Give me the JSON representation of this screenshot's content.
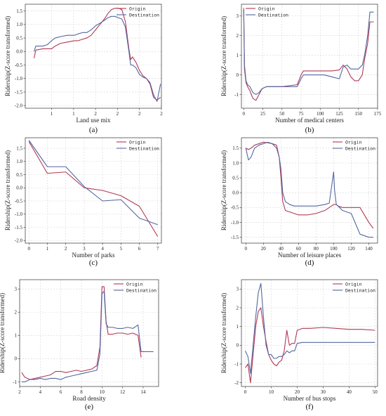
{
  "colors": {
    "origin": "#b03a55",
    "destination": "#5468a0"
  },
  "legend_labels": [
    "Origin",
    "Destination"
  ],
  "chart_data": [
    {
      "id": "a",
      "type": "line",
      "panel_label": "(a)",
      "xlabel": "Land use mix",
      "ylabel": "Ridership(Z-score transformed)",
      "xlim": [
        0.7,
        2.25
      ],
      "ylim": [
        -2.1,
        1.75
      ],
      "xticks": [
        1,
        1.25,
        1.5,
        1.75,
        2,
        2.25
      ],
      "xticklabels": [
        "1",
        "1",
        "2",
        "2",
        "2",
        "2"
      ],
      "yticks": [
        -2.0,
        -1.5,
        -1.0,
        -0.5,
        0.0,
        0.5,
        1.0,
        1.5
      ],
      "yticklabels": [
        "-2.0",
        "-1.5",
        "-1.0",
        "-0.5",
        "0.0",
        "0.5",
        "1.0",
        "1.5"
      ],
      "legend_position": "top-right",
      "series": [
        {
          "name": "Origin",
          "color_key": "origin",
          "x": [
            0.8,
            0.82,
            0.9,
            0.95,
            1.0,
            1.04,
            1.1,
            1.18,
            1.26,
            1.3,
            1.35,
            1.4,
            1.45,
            1.5,
            1.55,
            1.6,
            1.64,
            1.68,
            1.72,
            1.76,
            1.8,
            1.84,
            1.88,
            1.9,
            1.92,
            1.96,
            2.0,
            2.04,
            2.08,
            2.12,
            2.16,
            2.2,
            2.24
          ],
          "y": [
            -0.25,
            0.05,
            0.1,
            0.1,
            0.1,
            0.2,
            0.3,
            0.35,
            0.4,
            0.4,
            0.45,
            0.5,
            0.6,
            0.8,
            1.0,
            1.2,
            1.4,
            1.55,
            1.6,
            1.6,
            1.55,
            1.1,
            0.1,
            -0.3,
            -0.2,
            -0.4,
            -0.7,
            -0.9,
            -1.0,
            -1.2,
            -1.7,
            -1.8,
            -1.7
          ]
        },
        {
          "name": "Destination",
          "color_key": "destination",
          "x": [
            0.8,
            0.82,
            0.9,
            0.95,
            1.0,
            1.04,
            1.1,
            1.18,
            1.26,
            1.3,
            1.35,
            1.4,
            1.45,
            1.5,
            1.55,
            1.6,
            1.64,
            1.68,
            1.72,
            1.76,
            1.8,
            1.84,
            1.88,
            1.9,
            1.92,
            1.96,
            2.0,
            2.04,
            2.08,
            2.12,
            2.16,
            2.2,
            2.24
          ],
          "y": [
            0.0,
            0.2,
            0.2,
            0.25,
            0.4,
            0.5,
            0.55,
            0.6,
            0.6,
            0.65,
            0.7,
            0.7,
            0.8,
            0.95,
            1.05,
            1.15,
            1.25,
            1.3,
            1.3,
            1.25,
            1.2,
            0.9,
            0.0,
            -0.5,
            -0.5,
            -0.6,
            -0.85,
            -0.95,
            -1.0,
            -1.15,
            -1.6,
            -1.85,
            -1.2
          ]
        }
      ]
    },
    {
      "id": "b",
      "type": "line",
      "panel_label": "(b)",
      "xlabel": "Number of medical centers",
      "ylabel": "Ridership(Z-score transformed)",
      "xlim": [
        -3,
        175
      ],
      "ylim": [
        -1.7,
        3.6
      ],
      "xticks": [
        0,
        25,
        50,
        75,
        100,
        125,
        150,
        175
      ],
      "xticklabels": [
        "0",
        "25",
        "50",
        "75",
        "100",
        "125",
        "150",
        "175"
      ],
      "yticks": [
        -1,
        0,
        1,
        2,
        3
      ],
      "yticklabels": [
        "-1",
        "0",
        "1",
        "2",
        "3"
      ],
      "legend_position": "top-left",
      "series": [
        {
          "name": "Origin",
          "color_key": "origin",
          "x": [
            0,
            1,
            3,
            5,
            8,
            12,
            16,
            20,
            24,
            30,
            40,
            50,
            60,
            70,
            75,
            78,
            85,
            95,
            105,
            115,
            125,
            130,
            135,
            140,
            145,
            150,
            155,
            158,
            162,
            165,
            170
          ],
          "y": [
            3.4,
            0.3,
            -0.4,
            -0.6,
            -0.8,
            -1.2,
            -1.3,
            -1.0,
            -0.7,
            -0.6,
            -0.6,
            -0.6,
            -0.55,
            -0.5,
            0.0,
            0.2,
            0.2,
            0.2,
            0.2,
            0.2,
            0.25,
            0.5,
            0.3,
            -0.1,
            -0.3,
            -0.3,
            0.0,
            0.8,
            1.6,
            2.7,
            2.7
          ]
        },
        {
          "name": "Destination",
          "color_key": "destination",
          "x": [
            0,
            1,
            3,
            5,
            8,
            12,
            16,
            20,
            24,
            30,
            40,
            50,
            60,
            70,
            75,
            78,
            85,
            95,
            105,
            115,
            125,
            130,
            135,
            140,
            145,
            150,
            155,
            158,
            162,
            165,
            170
          ],
          "y": [
            3.3,
            0.5,
            -0.3,
            -0.5,
            -0.6,
            -0.9,
            -1.0,
            -0.9,
            -0.7,
            -0.6,
            -0.6,
            -0.6,
            -0.6,
            -0.6,
            -0.2,
            0.0,
            0.0,
            0.0,
            0.0,
            -0.1,
            -0.2,
            0.4,
            0.5,
            0.3,
            0.3,
            0.3,
            0.5,
            1.0,
            2.0,
            3.2,
            3.2
          ]
        }
      ]
    },
    {
      "id": "c",
      "type": "line",
      "panel_label": "(c)",
      "xlabel": "Number of parks",
      "ylabel": "Ridership(Z-score transformed)",
      "xlim": [
        -0.2,
        7.2
      ],
      "ylim": [
        -2.1,
        1.9
      ],
      "xticks": [
        0,
        1,
        2,
        3,
        4,
        5,
        6,
        7
      ],
      "xticklabels": [
        "0",
        "1",
        "2",
        "3",
        "4",
        "5",
        "6",
        "7"
      ],
      "yticks": [
        -2.0,
        -1.5,
        -1.0,
        -0.5,
        0.0,
        0.5,
        1.0,
        1.5
      ],
      "yticklabels": [
        "-2.0",
        "-1.5",
        "-1.0",
        "-0.5",
        "0.0",
        "0.5",
        "1.0",
        "1.5"
      ],
      "legend_position": "top-right",
      "series": [
        {
          "name": "Origin",
          "color_key": "origin",
          "x": [
            0,
            1,
            2,
            3,
            4,
            5,
            6,
            7
          ],
          "y": [
            1.75,
            0.55,
            0.6,
            0.0,
            -0.1,
            -0.3,
            -0.7,
            -1.85
          ]
        },
        {
          "name": "Destination",
          "color_key": "destination",
          "x": [
            0,
            1,
            2,
            3,
            4,
            5,
            6,
            7
          ],
          "y": [
            1.8,
            0.8,
            0.8,
            0.05,
            -0.5,
            -0.45,
            -1.15,
            -1.4
          ]
        }
      ]
    },
    {
      "id": "d",
      "type": "line",
      "panel_label": "(d)",
      "xlabel": "Number of leisure places",
      "ylabel": "Ridership(Z-score transformed)",
      "xlim": [
        -5,
        150
      ],
      "ylim": [
        -1.7,
        1.85
      ],
      "xticks": [
        0,
        20,
        40,
        60,
        80,
        100,
        120,
        140
      ],
      "xticklabels": [
        "0",
        "20",
        "40",
        "60",
        "80",
        "100",
        "120",
        "140"
      ],
      "yticks": [
        -1.5,
        -1.0,
        -0.5,
        0.0,
        0.5,
        1.0,
        1.5
      ],
      "yticklabels": [
        "-1.5",
        "-1.0",
        "-0.5",
        "0.0",
        "0.5",
        "1.0",
        "1.5"
      ],
      "legend_position": "top-right",
      "series": [
        {
          "name": "Origin",
          "color_key": "origin",
          "x": [
            0,
            3,
            6,
            10,
            15,
            20,
            25,
            30,
            35,
            38,
            40,
            42,
            45,
            50,
            55,
            60,
            70,
            80,
            90,
            95,
            100,
            103,
            105,
            110,
            120,
            130,
            140,
            145
          ],
          "y": [
            1.5,
            1.45,
            1.5,
            1.6,
            1.65,
            1.7,
            1.68,
            1.65,
            1.6,
            1.2,
            0.5,
            -0.3,
            -0.6,
            -0.65,
            -0.7,
            -0.75,
            -0.75,
            -0.7,
            -0.6,
            -0.5,
            -0.4,
            -0.4,
            -0.45,
            -0.5,
            -0.5,
            -0.5,
            -1.0,
            -1.2
          ]
        },
        {
          "name": "Destination",
          "color_key": "destination",
          "x": [
            0,
            3,
            6,
            10,
            15,
            20,
            25,
            30,
            35,
            38,
            40,
            42,
            45,
            50,
            55,
            60,
            70,
            80,
            90,
            95,
            100,
            101,
            103,
            105,
            110,
            120,
            130,
            140,
            145
          ],
          "y": [
            1.5,
            1.1,
            1.2,
            1.5,
            1.6,
            1.65,
            1.7,
            1.65,
            1.5,
            1.2,
            0.8,
            0.0,
            -0.3,
            -0.4,
            -0.45,
            -0.45,
            -0.45,
            -0.45,
            -0.4,
            -0.35,
            0.7,
            0.1,
            -0.4,
            -0.45,
            -0.6,
            -0.7,
            -1.4,
            -1.5,
            -1.5
          ]
        }
      ]
    },
    {
      "id": "e",
      "type": "line",
      "panel_label": "(e)",
      "xlabel": "Road density",
      "ylabel": "Ridership(Z-score transformed)",
      "xlim": [
        2,
        15.5
      ],
      "ylim": [
        -1.2,
        3.4
      ],
      "xticks": [
        2,
        4,
        6,
        8,
        10,
        12,
        14
      ],
      "xticklabels": [
        "2",
        "4",
        "6",
        "8",
        "10",
        "12",
        "14"
      ],
      "yticks": [
        -1,
        0,
        1,
        2,
        3
      ],
      "yticklabels": [
        "-1",
        "0",
        "1",
        "2",
        "3"
      ],
      "legend_position": "top-right",
      "series": [
        {
          "name": "Origin",
          "color_key": "origin",
          "x": [
            2.2,
            2.5,
            3.0,
            3.5,
            4.0,
            4.5,
            5.0,
            5.5,
            6.0,
            6.5,
            7.0,
            7.5,
            8.0,
            8.5,
            9.0,
            9.5,
            9.8,
            10.0,
            10.2,
            10.4,
            10.6,
            10.8,
            11.0,
            11.5,
            12.0,
            12.5,
            13.0,
            13.5,
            13.8
          ],
          "y": [
            -0.6,
            -0.8,
            -0.9,
            -0.85,
            -0.8,
            -0.75,
            -0.7,
            -0.55,
            -0.55,
            -0.6,
            -0.55,
            -0.5,
            -0.55,
            -0.5,
            -0.45,
            -0.3,
            0.5,
            3.1,
            3.1,
            1.6,
            1.05,
            1.05,
            1.05,
            1.1,
            1.1,
            1.05,
            1.1,
            1.0,
            0.05
          ]
        },
        {
          "name": "Destination",
          "color_key": "destination",
          "x": [
            2.2,
            2.5,
            3.0,
            3.5,
            4.0,
            4.5,
            5.0,
            5.5,
            6.0,
            6.5,
            7.0,
            7.5,
            8.0,
            8.5,
            9.0,
            9.5,
            9.8,
            10.0,
            10.2,
            10.4,
            10.6,
            10.8,
            11.0,
            11.5,
            12.0,
            12.5,
            13.0,
            13.5,
            13.8,
            14.0,
            15.0
          ],
          "y": [
            -1.0,
            -1.0,
            -0.9,
            -0.9,
            -0.85,
            -0.9,
            -0.85,
            -0.85,
            -0.9,
            -0.8,
            -0.75,
            -0.7,
            -0.65,
            -0.6,
            -0.55,
            -0.5,
            0.2,
            2.8,
            2.9,
            1.5,
            1.35,
            1.35,
            1.35,
            1.3,
            1.3,
            1.35,
            1.3,
            1.45,
            0.3,
            0.3,
            0.3
          ]
        }
      ]
    },
    {
      "id": "f",
      "type": "line",
      "panel_label": "(f)",
      "xlabel": "Number of bus stops",
      "ylabel": "Ridership(Z-score transformed)",
      "xlim": [
        -1.5,
        51
      ],
      "ylim": [
        -2.2,
        3.5
      ],
      "xticks": [
        0,
        10,
        20,
        30,
        40,
        50
      ],
      "xticklabels": [
        "0",
        "10",
        "20",
        "30",
        "40",
        "50"
      ],
      "yticks": [
        -2,
        -1,
        0,
        1,
        2,
        3
      ],
      "yticklabels": [
        "-2",
        "-1",
        "0",
        "1",
        "2",
        "3"
      ],
      "legend_position": "top-right",
      "series": [
        {
          "name": "Origin",
          "color_key": "origin",
          "x": [
            0,
            1,
            2,
            3,
            4,
            5,
            6,
            7,
            8,
            9,
            10,
            11,
            12,
            13,
            14,
            15,
            16,
            17,
            18,
            19,
            20,
            22,
            25,
            30,
            35,
            40,
            45,
            50
          ],
          "y": [
            -1.2,
            -1.0,
            -2.0,
            -0.5,
            1.0,
            1.8,
            2.0,
            1.0,
            0.2,
            -0.5,
            -0.8,
            -1.0,
            -1.1,
            -0.9,
            -0.8,
            -0.3,
            0.8,
            0.0,
            0.1,
            0.1,
            0.8,
            0.9,
            0.9,
            0.95,
            0.9,
            0.85,
            0.85,
            0.8
          ]
        },
        {
          "name": "Destination",
          "color_key": "destination",
          "x": [
            0,
            1,
            2,
            3,
            4,
            5,
            6,
            7,
            8,
            9,
            10,
            11,
            12,
            13,
            14,
            15,
            16,
            17,
            18,
            19,
            20,
            22,
            25,
            30,
            35,
            40,
            45,
            50
          ],
          "y": [
            -0.3,
            -0.6,
            -1.5,
            0.0,
            1.5,
            2.8,
            3.3,
            1.5,
            0.0,
            -0.5,
            -0.5,
            -0.7,
            -0.7,
            -0.6,
            -0.6,
            -0.5,
            -0.3,
            -0.4,
            -0.3,
            -0.3,
            0.1,
            0.15,
            0.15,
            0.15,
            0.15,
            0.15,
            0.15,
            0.15
          ]
        }
      ]
    }
  ]
}
